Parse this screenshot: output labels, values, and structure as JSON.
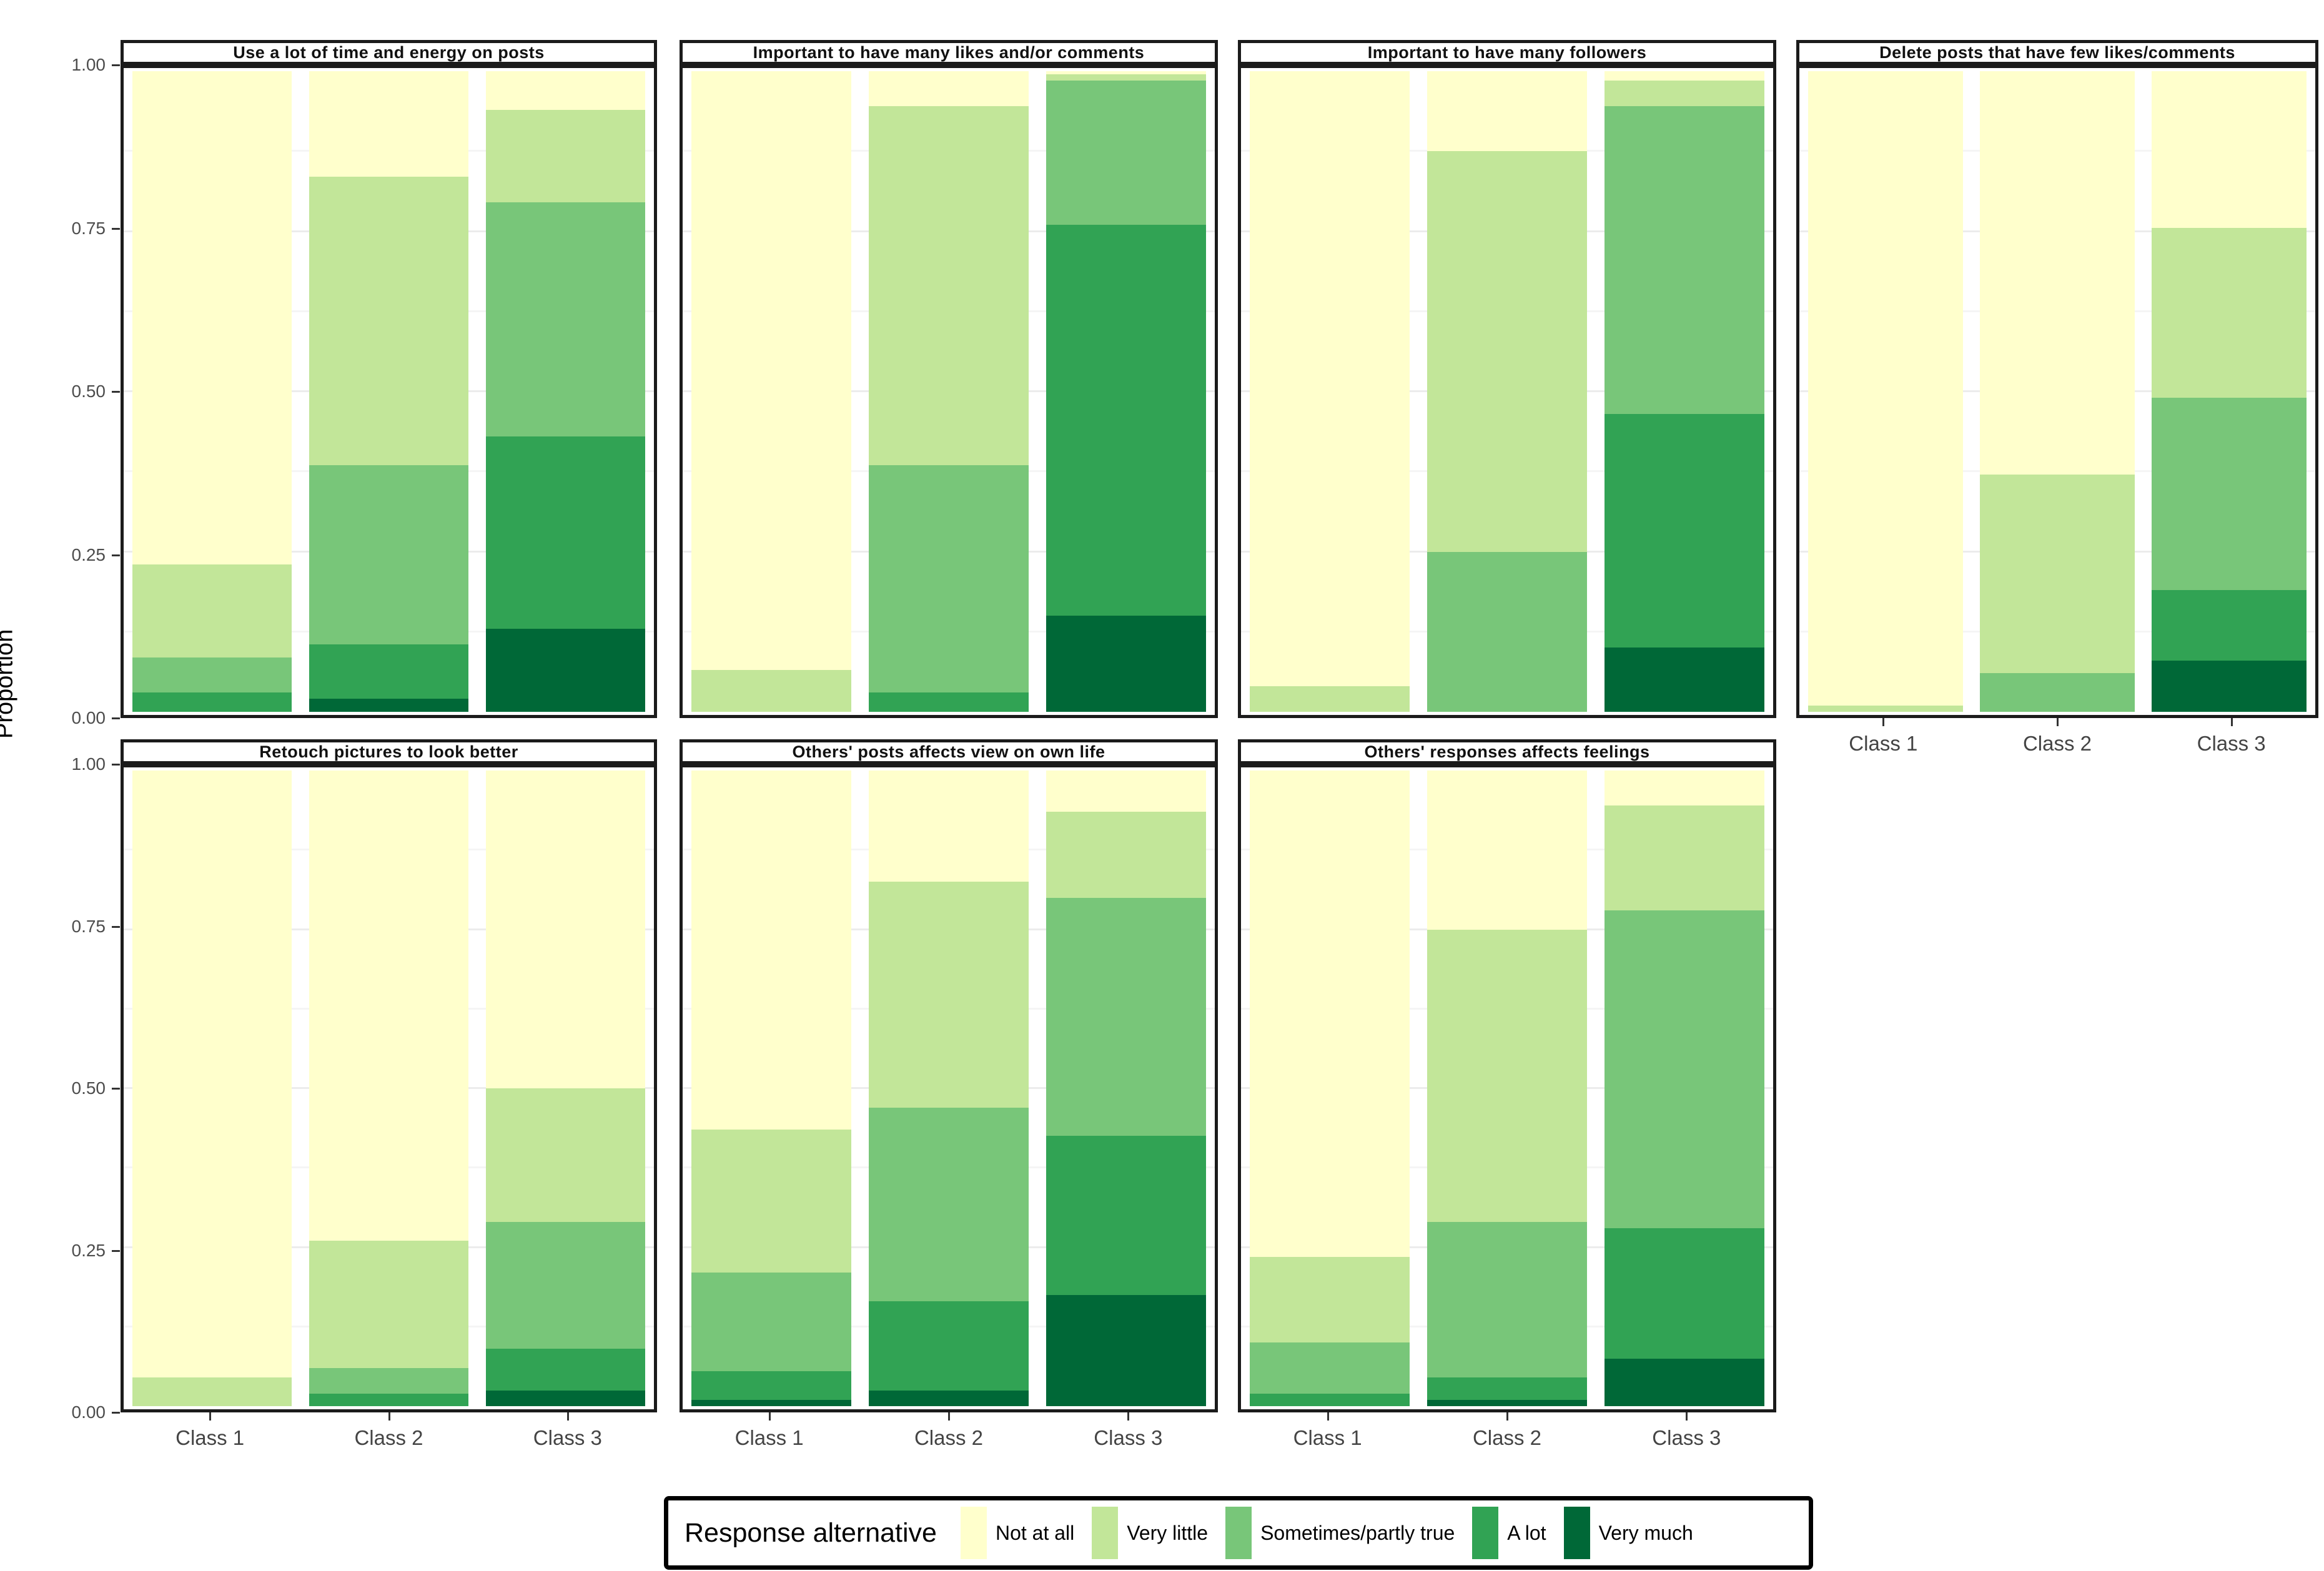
{
  "y_axis_title": "Proportion",
  "chart_data": {
    "type": "bar",
    "stacked": true,
    "orientation": "vertical",
    "categories": [
      "Class 1",
      "Class 2",
      "Class 3"
    ],
    "ylabel": "Proportion",
    "ylim": [
      0,
      1
    ],
    "yticks": [
      "0.00",
      "0.25",
      "0.50",
      "0.75",
      "1.00"
    ],
    "grid": "faint major and minor horizontal gridlines",
    "legend": {
      "title": "Response alternative",
      "position": "bottom",
      "entries": [
        {
          "key": "not_at_all",
          "label": "Not at all",
          "color": "#FFFFCC"
        },
        {
          "key": "very_little",
          "label": "Very little",
          "color": "#C2E699"
        },
        {
          "key": "sometimes",
          "label": "Sometimes/partly true",
          "color": "#78C679"
        },
        {
          "key": "a_lot",
          "label": "A lot",
          "color": "#31A354"
        },
        {
          "key": "very_much",
          "label": "Very much",
          "color": "#006837"
        }
      ]
    },
    "facets": [
      {
        "title": "Use a lot of time and energy on posts",
        "bars": [
          {
            "category": "Class 1",
            "segments": {
              "very_much": 0.0,
              "a_lot": 0.03,
              "sometimes": 0.055,
              "very_little": 0.145,
              "not_at_all": 0.77
            }
          },
          {
            "category": "Class 2",
            "segments": {
              "very_much": 0.02,
              "a_lot": 0.085,
              "sometimes": 0.28,
              "very_little": 0.45,
              "not_at_all": 0.165
            }
          },
          {
            "category": "Class 3",
            "segments": {
              "very_much": 0.13,
              "a_lot": 0.3,
              "sometimes": 0.365,
              "very_little": 0.145,
              "not_at_all": 0.06
            }
          }
        ]
      },
      {
        "title": "Important to have many likes and/or comments",
        "bars": [
          {
            "category": "Class 1",
            "segments": {
              "very_much": 0.0,
              "a_lot": 0.0,
              "sometimes": 0.0,
              "very_little": 0.065,
              "not_at_all": 0.935
            }
          },
          {
            "category": "Class 2",
            "segments": {
              "very_much": 0.0,
              "a_lot": 0.03,
              "sometimes": 0.355,
              "very_little": 0.56,
              "not_at_all": 0.055
            }
          },
          {
            "category": "Class 3",
            "segments": {
              "very_much": 0.15,
              "a_lot": 0.61,
              "sometimes": 0.225,
              "very_little": 0.01,
              "not_at_all": 0.005
            }
          }
        ]
      },
      {
        "title": "Important to have many followers",
        "bars": [
          {
            "category": "Class 1",
            "segments": {
              "very_much": 0.0,
              "a_lot": 0.0,
              "sometimes": 0.0,
              "very_little": 0.04,
              "not_at_all": 0.96
            }
          },
          {
            "category": "Class 2",
            "segments": {
              "very_much": 0.0,
              "a_lot": 0.0,
              "sometimes": 0.25,
              "very_little": 0.625,
              "not_at_all": 0.125
            }
          },
          {
            "category": "Class 3",
            "segments": {
              "very_much": 0.1,
              "a_lot": 0.365,
              "sometimes": 0.48,
              "very_little": 0.04,
              "not_at_all": 0.015
            }
          }
        ]
      },
      {
        "title": "Delete posts that have few likes/comments",
        "bars": [
          {
            "category": "Class 1",
            "segments": {
              "very_much": 0.0,
              "a_lot": 0.0,
              "sometimes": 0.0,
              "very_little": 0.01,
              "not_at_all": 0.99
            }
          },
          {
            "category": "Class 2",
            "segments": {
              "very_much": 0.0,
              "a_lot": 0.0,
              "sometimes": 0.06,
              "very_little": 0.31,
              "not_at_all": 0.63
            }
          },
          {
            "category": "Class 3",
            "segments": {
              "very_much": 0.08,
              "a_lot": 0.11,
              "sometimes": 0.3,
              "very_little": 0.265,
              "not_at_all": 0.245
            }
          }
        ]
      },
      {
        "title": "Retouch pictures to look better",
        "bars": [
          {
            "category": "Class 1",
            "segments": {
              "very_much": 0.0,
              "a_lot": 0.0,
              "sometimes": 0.0,
              "very_little": 0.045,
              "not_at_all": 0.955
            }
          },
          {
            "category": "Class 2",
            "segments": {
              "very_much": 0.0,
              "a_lot": 0.02,
              "sometimes": 0.04,
              "very_little": 0.2,
              "not_at_all": 0.74
            }
          },
          {
            "category": "Class 3",
            "segments": {
              "very_much": 0.025,
              "a_lot": 0.065,
              "sometimes": 0.2,
              "very_little": 0.21,
              "not_at_all": 0.5
            }
          }
        ]
      },
      {
        "title": "Others' posts affects view on own life",
        "bars": [
          {
            "category": "Class 1",
            "segments": {
              "very_much": 0.01,
              "a_lot": 0.045,
              "sometimes": 0.155,
              "very_little": 0.225,
              "not_at_all": 0.565
            }
          },
          {
            "category": "Class 2",
            "segments": {
              "very_much": 0.025,
              "a_lot": 0.14,
              "sometimes": 0.305,
              "very_little": 0.355,
              "not_at_all": 0.175
            }
          },
          {
            "category": "Class 3",
            "segments": {
              "very_much": 0.175,
              "a_lot": 0.25,
              "sometimes": 0.375,
              "very_little": 0.135,
              "not_at_all": 0.065
            }
          }
        ]
      },
      {
        "title": "Others' responses affects feelings",
        "bars": [
          {
            "category": "Class 1",
            "segments": {
              "very_much": 0.0,
              "a_lot": 0.02,
              "sometimes": 0.08,
              "very_little": 0.135,
              "not_at_all": 0.765
            }
          },
          {
            "category": "Class 2",
            "segments": {
              "very_much": 0.01,
              "a_lot": 0.035,
              "sometimes": 0.245,
              "very_little": 0.46,
              "not_at_all": 0.25
            }
          },
          {
            "category": "Class 3",
            "segments": {
              "very_much": 0.075,
              "a_lot": 0.205,
              "sometimes": 0.5,
              "very_little": 0.165,
              "not_at_all": 0.055
            }
          }
        ]
      }
    ]
  }
}
